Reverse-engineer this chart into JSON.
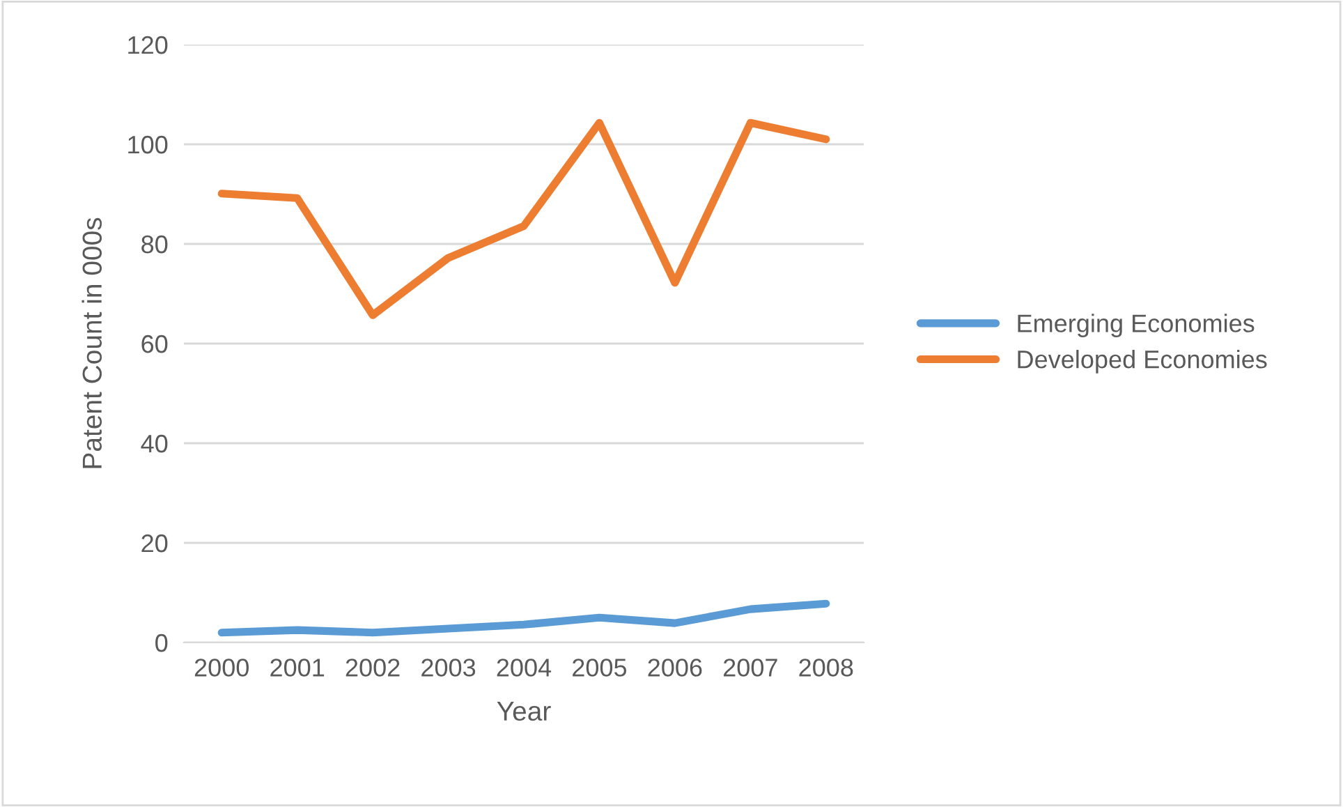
{
  "chart_data": {
    "type": "line",
    "xlabel": "Year",
    "ylabel": "Patent Count in 000s",
    "categories": [
      "2000",
      "2001",
      "2002",
      "2003",
      "2004",
      "2005",
      "2006",
      "2007",
      "2008"
    ],
    "series": [
      {
        "name": "Emerging Economies",
        "color": "#5b9bd5",
        "values": [
          2.0,
          2.5,
          2.0,
          2.8,
          3.6,
          5.0,
          3.9,
          6.7,
          7.8
        ]
      },
      {
        "name": "Developed Economies",
        "color": "#ed7d31",
        "values": [
          90.1,
          89.2,
          65.7,
          77.2,
          83.6,
          104.3,
          72.2,
          104.3,
          101.0
        ]
      }
    ],
    "ylim": [
      0,
      120
    ],
    "yticks": [
      0,
      20,
      40,
      60,
      80,
      100,
      120
    ],
    "grid": "y",
    "legend": "right",
    "marker": "none",
    "line_style": "solid"
  }
}
